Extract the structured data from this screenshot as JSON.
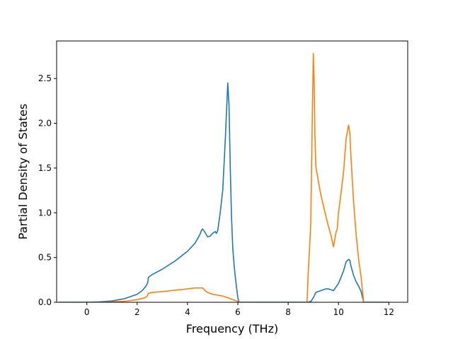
{
  "chart_data": {
    "type": "line",
    "title": "",
    "xlabel": "Frequency (THz)",
    "ylabel": "Partial Density of States",
    "xlim": [
      -1.2,
      12.75
    ],
    "ylim": [
      0,
      2.92
    ],
    "xticks": [
      0,
      2,
      4,
      6,
      8,
      10,
      12
    ],
    "xtick_labels": [
      "0",
      "2",
      "4",
      "6",
      "8",
      "10",
      "12"
    ],
    "yticks": [
      0.0,
      0.5,
      1.0,
      1.5,
      2.0,
      2.5
    ],
    "ytick_labels": [
      "0.0",
      "0.5",
      "1.0",
      "1.5",
      "2.0",
      "2.5"
    ],
    "grid": false,
    "legend": false,
    "series": [
      {
        "color": "#1f77b4",
        "x": [
          -1.1,
          0.0,
          0.5,
          1.0,
          1.5,
          2.0,
          2.2,
          2.35,
          2.42,
          2.45,
          2.6,
          3.0,
          3.5,
          4.0,
          4.2,
          4.3,
          4.4,
          4.5,
          4.55,
          4.6,
          4.7,
          4.8,
          4.9,
          5.0,
          5.1,
          5.15,
          5.2,
          5.3,
          5.4,
          5.5,
          5.6,
          5.65,
          5.7,
          5.75,
          5.8,
          5.85,
          5.9,
          6.0,
          6.05,
          6.1,
          6.5,
          7.0,
          7.5,
          8.0,
          8.5,
          8.8,
          8.9,
          9.0,
          9.1,
          9.2,
          9.3,
          9.4,
          9.5,
          9.6,
          9.7,
          9.8,
          9.85,
          9.9,
          10.0,
          10.1,
          10.2,
          10.3,
          10.4,
          10.45,
          10.5,
          10.6,
          10.7,
          10.8,
          10.9,
          11.0,
          11.5,
          12.0
        ],
        "y": [
          0.0,
          0.0,
          0.005,
          0.015,
          0.04,
          0.09,
          0.13,
          0.18,
          0.22,
          0.28,
          0.31,
          0.37,
          0.46,
          0.57,
          0.63,
          0.66,
          0.71,
          0.76,
          0.8,
          0.82,
          0.78,
          0.73,
          0.74,
          0.77,
          0.79,
          0.77,
          0.8,
          1.0,
          1.25,
          1.8,
          2.45,
          2.2,
          1.5,
          0.95,
          0.6,
          0.42,
          0.28,
          0.05,
          0.0,
          0.0,
          0.0,
          0.0,
          0.0,
          0.0,
          0.0,
          0.0,
          0.01,
          0.05,
          0.11,
          0.12,
          0.13,
          0.14,
          0.15,
          0.15,
          0.14,
          0.13,
          0.15,
          0.17,
          0.21,
          0.28,
          0.35,
          0.45,
          0.48,
          0.47,
          0.4,
          0.3,
          0.23,
          0.18,
          0.12,
          0.0,
          0.0,
          0.0
        ]
      },
      {
        "color": "#ff7f0e",
        "x": [
          -1.1,
          0.0,
          1.0,
          1.5,
          2.0,
          2.3,
          2.4,
          2.45,
          2.6,
          3.0,
          3.5,
          4.0,
          4.3,
          4.5,
          4.6,
          4.7,
          4.8,
          5.0,
          5.2,
          5.4,
          5.6,
          5.8,
          6.0,
          6.1,
          6.5,
          7.0,
          7.5,
          8.0,
          8.5,
          8.75,
          8.8,
          8.85,
          8.9,
          8.95,
          9.0,
          9.03,
          9.06,
          9.1,
          9.2,
          9.3,
          9.4,
          9.5,
          9.6,
          9.7,
          9.8,
          9.85,
          9.9,
          9.95,
          10.0,
          10.1,
          10.2,
          10.3,
          10.4,
          10.45,
          10.5,
          10.6,
          10.7,
          10.8,
          10.9,
          11.0,
          11.5,
          12.0
        ],
        "y": [
          0.0,
          0.0,
          0.005,
          0.01,
          0.03,
          0.05,
          0.07,
          0.1,
          0.11,
          0.12,
          0.135,
          0.15,
          0.16,
          0.16,
          0.16,
          0.13,
          0.11,
          0.09,
          0.08,
          0.07,
          0.05,
          0.03,
          0.01,
          0.0,
          0.0,
          0.0,
          0.0,
          0.0,
          0.0,
          0.0,
          0.35,
          0.6,
          0.9,
          1.9,
          2.78,
          2.5,
          1.9,
          1.52,
          1.35,
          1.2,
          1.08,
          0.96,
          0.85,
          0.75,
          0.62,
          0.7,
          0.78,
          0.82,
          1.0,
          1.22,
          1.45,
          1.82,
          1.98,
          1.9,
          1.6,
          1.12,
          0.76,
          0.48,
          0.28,
          0.0,
          0.0,
          0.0
        ]
      }
    ]
  }
}
